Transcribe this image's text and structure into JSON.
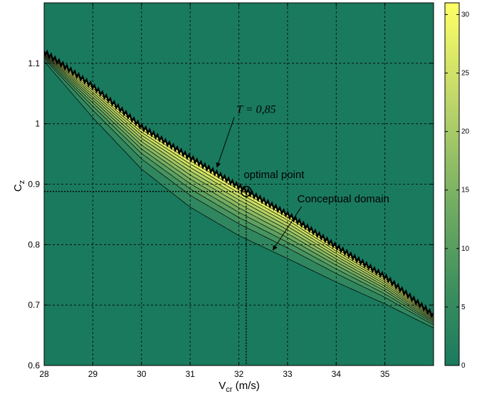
{
  "chart_data": {
    "type": "contour",
    "title": "",
    "xlabel": "V",
    "xlabel_sub": "cr",
    "xlabel_unit": " (m/s)",
    "ylabel": "C",
    "ylabel_sub": "z",
    "xlim": [
      28,
      36
    ],
    "ylim": [
      0.6,
      1.2
    ],
    "grid": true,
    "grid_style": "dashed",
    "x_ticks": [
      "28",
      "29",
      "30",
      "31",
      "32",
      "33",
      "34",
      "35"
    ],
    "x_tick_values": [
      28,
      29,
      30,
      31,
      32,
      33,
      34,
      35
    ],
    "y_ticks": [
      "0.6",
      "0.7",
      "0.8",
      "0.9",
      "1",
      "1.1"
    ],
    "y_tick_values": [
      0.6,
      0.7,
      0.8,
      0.9,
      1.0,
      1.1
    ],
    "colorbar": {
      "min": 0,
      "max": 31,
      "ticks": [
        "0",
        "5",
        "10",
        "15",
        "20",
        "25",
        "30"
      ],
      "tick_values": [
        0,
        5,
        10,
        15,
        20,
        25,
        30
      ],
      "color_low": "#1a7a5e",
      "color_high": "#ffff66"
    },
    "background_color": "#1a7a5e",
    "band": {
      "upper_boundary": [
        [
          27.9,
          1.125
        ],
        [
          29,
          1.062
        ],
        [
          30,
          0.995
        ],
        [
          31,
          0.944
        ],
        [
          32,
          0.896
        ],
        [
          33,
          0.85
        ],
        [
          34,
          0.797
        ],
        [
          35,
          0.747
        ],
        [
          36,
          0.683
        ]
      ],
      "lower_boundary": [
        [
          27.9,
          1.113
        ],
        [
          29,
          1.01
        ],
        [
          30,
          0.925
        ],
        [
          31,
          0.862
        ],
        [
          32,
          0.815
        ],
        [
          33,
          0.777
        ],
        [
          34,
          0.738
        ],
        [
          35,
          0.702
        ],
        [
          36,
          0.662
        ]
      ],
      "contour_levels": [
        3,
        6,
        9,
        12,
        15,
        18,
        21,
        24,
        27
      ],
      "peak_value": 31
    },
    "optimal_point": {
      "x": 32.15,
      "y": 0.888
    },
    "reference_lines": {
      "x": 32.15,
      "y": 0.888
    },
    "annotations": [
      {
        "text": "T = 0,85",
        "style": "math",
        "text_x": 31.95,
        "text_y": 1.018,
        "arrow_to": [
          31.55,
          0.928
        ]
      },
      {
        "text": "optimal point",
        "style": "plain",
        "text_x": 32.1,
        "text_y": 0.91
      },
      {
        "text": "Conceptual domain",
        "style": "plain",
        "text_x": 33.2,
        "text_y": 0.87,
        "arrow_to": [
          32.7,
          0.791
        ]
      }
    ]
  }
}
